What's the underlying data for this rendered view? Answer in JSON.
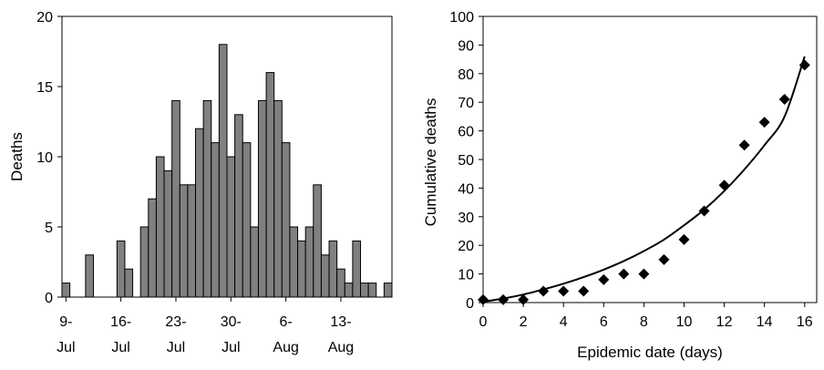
{
  "chart_data": [
    {
      "type": "bar",
      "title": "",
      "ylabel": "Deaths",
      "xlabel": "",
      "ylim": [
        0,
        20
      ],
      "yticks": [
        0,
        5,
        10,
        15,
        20
      ],
      "bar_color": "#808080",
      "start_date": "9-Jul",
      "xtick_labels": [
        {
          "day": 0,
          "line1": "9-",
          "line2": "Jul"
        },
        {
          "day": 7,
          "line1": "16-",
          "line2": "Jul"
        },
        {
          "day": 14,
          "line1": "23-",
          "line2": "Jul"
        },
        {
          "day": 21,
          "line1": "30-",
          "line2": "Jul"
        },
        {
          "day": 28,
          "line1": "6-",
          "line2": "Aug"
        },
        {
          "day": 35,
          "line1": "13-",
          "line2": "Aug"
        }
      ],
      "values": [
        1,
        0,
        0,
        3,
        0,
        0,
        0,
        4,
        2,
        0,
        5,
        7,
        10,
        9,
        14,
        8,
        8,
        12,
        14,
        11,
        18,
        10,
        13,
        11,
        5,
        14,
        16,
        14,
        11,
        5,
        4,
        5,
        8,
        3,
        4,
        2,
        1,
        4,
        1,
        1,
        0,
        1
      ]
    },
    {
      "type": "scatter",
      "title": "",
      "xlabel": "Epidemic date (days)",
      "ylabel": "Cumulative deaths",
      "xlim": [
        0,
        16.6
      ],
      "ylim": [
        0,
        100
      ],
      "xticks": [
        0,
        2,
        4,
        6,
        8,
        10,
        12,
        14,
        16
      ],
      "yticks": [
        0,
        10,
        20,
        30,
        40,
        50,
        60,
        70,
        80,
        90,
        100
      ],
      "marker": "diamond",
      "points": {
        "x": [
          0,
          1,
          2,
          3,
          4,
          5,
          6,
          7,
          8,
          9,
          10,
          11,
          12,
          13,
          14,
          15,
          16
        ],
        "y": [
          1,
          1,
          1,
          4,
          4,
          4,
          8,
          10,
          10,
          15,
          22,
          32,
          41,
          55,
          63,
          71,
          83
        ]
      },
      "fit_curve": {
        "x": [
          0,
          1,
          2,
          3,
          4,
          5,
          6,
          7,
          8,
          9,
          10,
          11,
          12,
          13,
          14,
          15,
          16
        ],
        "y": [
          0.3,
          1.4,
          2.8,
          4.6,
          6.6,
          8.9,
          11.5,
          14.5,
          18,
          22,
          27,
          32.5,
          39,
          46.5,
          55,
          65,
          86
        ]
      }
    }
  ]
}
